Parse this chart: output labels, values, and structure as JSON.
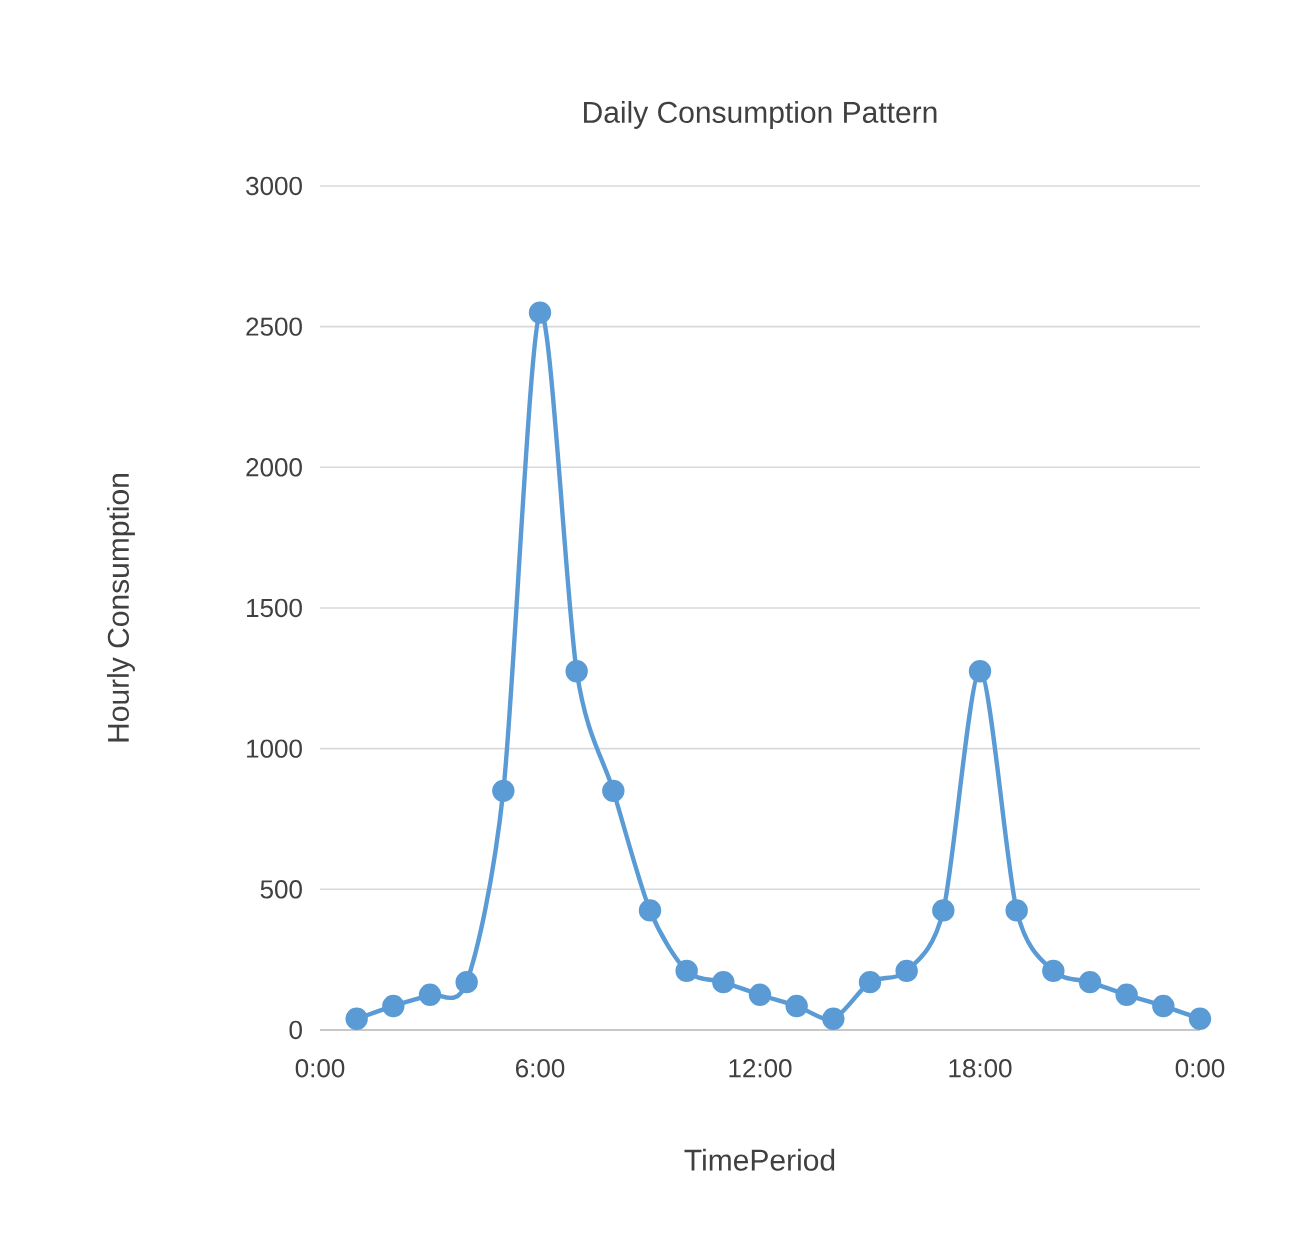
{
  "chart_data": {
    "type": "line",
    "title": "Daily Consumption Pattern",
    "xlabel": "TimePeriod",
    "ylabel": "Hourly Consumption",
    "x": [
      1,
      2,
      3,
      4,
      5,
      6,
      7,
      8,
      9,
      10,
      11,
      12,
      13,
      14,
      15,
      16,
      17,
      18,
      19,
      20,
      21,
      22,
      23,
      24
    ],
    "series": [
      {
        "color": "#5b9bd5",
        "values": [
          40,
          85,
          125,
          170,
          850,
          2550,
          1275,
          850,
          425,
          210,
          170,
          125,
          85,
          40,
          170,
          210,
          425,
          1275,
          425,
          210,
          170,
          125,
          85,
          40
        ]
      }
    ],
    "xlim": [
      0,
      24
    ],
    "xticks": [
      {
        "value": 0,
        "label": "0:00"
      },
      {
        "value": 6,
        "label": "6:00"
      },
      {
        "value": 12,
        "label": "12:00"
      },
      {
        "value": 18,
        "label": "18:00"
      },
      {
        "value": 24,
        "label": "0:00"
      }
    ],
    "ylim": [
      0,
      3000
    ],
    "yticks": [
      0,
      500,
      1000,
      1500,
      2000,
      2500,
      3000
    ],
    "grid": "y",
    "marker": "circle",
    "line_style": "solid"
  }
}
